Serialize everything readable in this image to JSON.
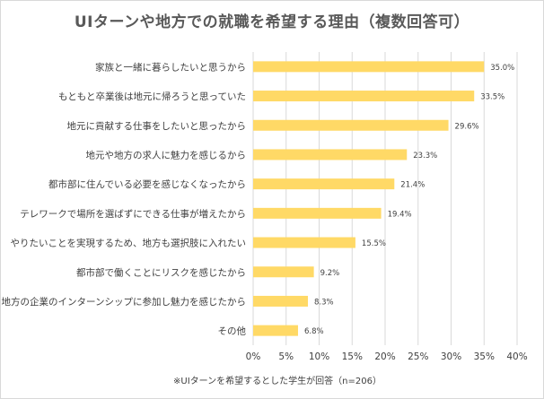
{
  "chart_data": {
    "type": "bar",
    "orientation": "horizontal",
    "title": "UIターンや地方での就職を希望する理由（複数回答可）",
    "categories": [
      "家族と一緒に暮らしたいと思うから",
      "もともと卒業後は地元に帰ろうと思っていた",
      "地元に貢献する仕事をしたいと思ったから",
      "地元や地方の求人に魅力を感じるから",
      "都市部に住んでいる必要を感じなくなったから",
      "テレワークで場所を選ばずにできる仕事が増えたから",
      "やりたいことを実現するため、地方も選択肢に入れたい",
      "都市部で働くことにリスクを感じたから",
      "地方の企業のインターンシップに参加し魅力を感じたから",
      "その他"
    ],
    "values": [
      35.0,
      33.5,
      29.6,
      23.3,
      21.4,
      19.4,
      15.5,
      9.2,
      8.3,
      6.8
    ],
    "value_labels": [
      "35.0%",
      "33.5%",
      "29.6%",
      "23.3%",
      "21.4%",
      "19.4%",
      "15.5%",
      "9.2%",
      "8.3%",
      "6.8%"
    ],
    "xlim": [
      0,
      40
    ],
    "x_ticks": [
      0,
      5,
      10,
      15,
      20,
      25,
      30,
      35,
      40
    ],
    "x_tick_labels": [
      "0%",
      "5%",
      "10%",
      "15%",
      "20%",
      "25%",
      "30%",
      "35%",
      "40%"
    ],
    "grid": true,
    "bar_color": "#ffd966",
    "grid_color": "#d9d9d9",
    "footnote": "※UIターンを希望するとした学生が回答（n=206）"
  }
}
